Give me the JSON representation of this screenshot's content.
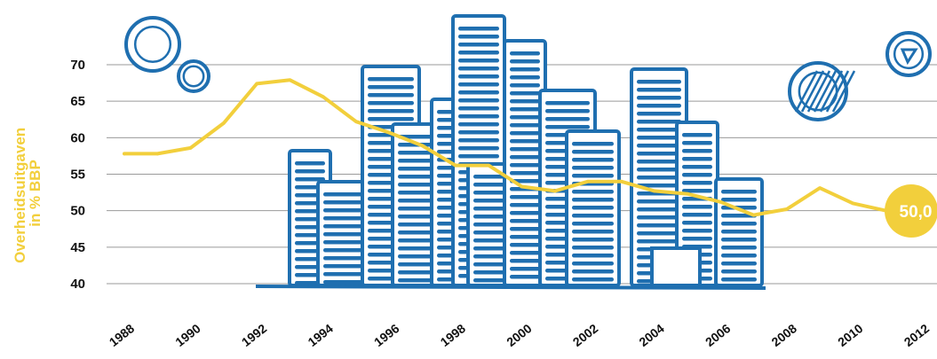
{
  "chart_data": {
    "type": "line",
    "ylabel_lines": [
      "Overheidsuitgaven",
      "in % BBP"
    ],
    "ylim": [
      38,
      75
    ],
    "xlim": [
      1988,
      2012.5
    ],
    "yticks": [
      "40",
      "45",
      "50",
      "55",
      "60",
      "65",
      "70"
    ],
    "xticks": [
      "1988",
      "1990",
      "1992",
      "1994",
      "1996",
      "1998",
      "2000",
      "2002",
      "2004",
      "2006",
      "2008",
      "2010",
      "2012"
    ],
    "grid": true,
    "series": [
      {
        "x": [
          1988,
          1989,
          1990,
          1991,
          1992,
          1993,
          1994,
          1995,
          1996,
          1997,
          1998,
          1999,
          2000,
          2001,
          2002,
          2003,
          2004,
          2005,
          2006,
          2007,
          2008,
          2009,
          2010,
          2011
        ],
        "values": [
          57.8,
          57.8,
          58.6,
          62.0,
          67.4,
          67.9,
          65.6,
          62.2,
          60.7,
          58.9,
          56.2,
          56.2,
          53.3,
          52.7,
          54.0,
          54.0,
          52.7,
          52.3,
          51.2,
          49.4,
          50.2,
          53.1,
          51.0,
          50.0
        ],
        "color": "#f2cf3c"
      }
    ],
    "end_label": "50,0"
  },
  "colors": {
    "line": "#f2cf3c",
    "axis_label": "#f2cf3c",
    "illustration": "#1f6fb0",
    "grid": "#9a9a9a"
  }
}
